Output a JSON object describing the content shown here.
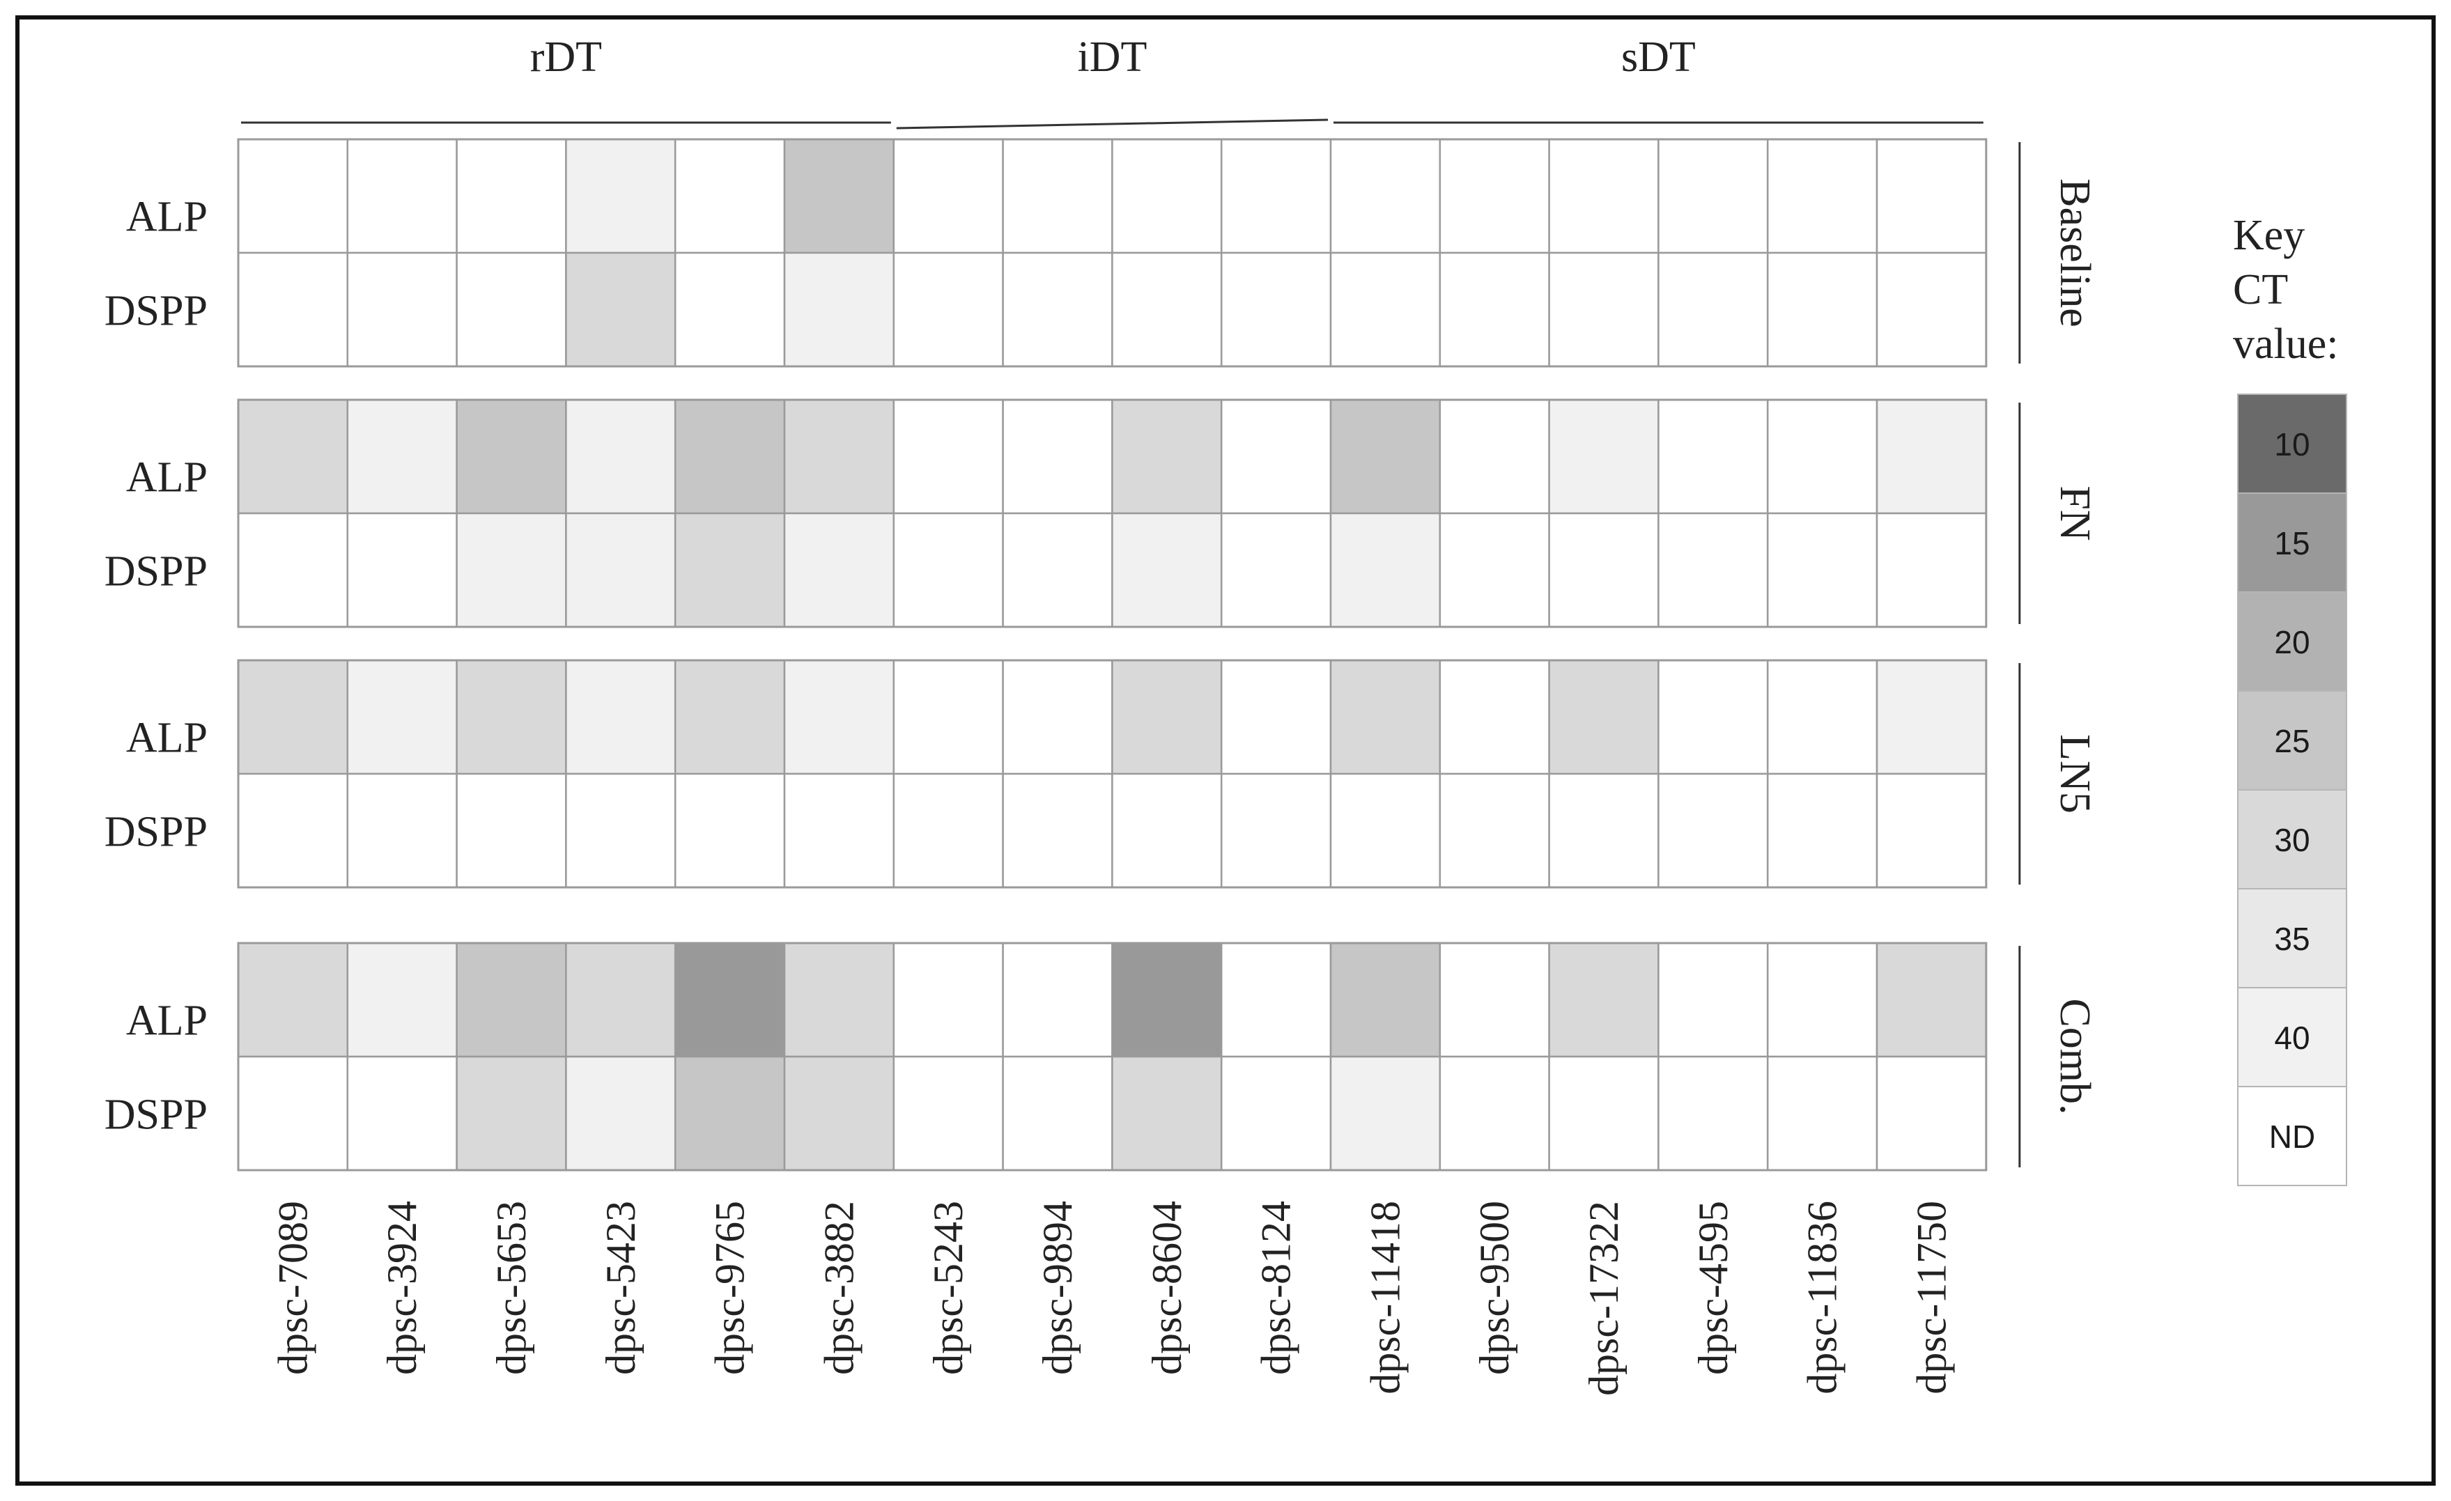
{
  "chart_data": {
    "type": "heatmap",
    "column_groups": [
      {
        "label": "rDT",
        "count": 6
      },
      {
        "label": "iDT",
        "count": 4
      },
      {
        "label": "sDT",
        "count": 6
      }
    ],
    "columns": [
      "dpsc-7089",
      "dpsc-3924",
      "dpsc-5653",
      "dpsc-5423",
      "dpsc-9765",
      "dpsc-3882",
      "dpsc-5243",
      "dpsc-9894",
      "dpsc-8604",
      "dpsc-8124",
      "dpsc-11418",
      "dpsc-9500",
      "dpsc-17322",
      "dpsc-4595",
      "dpsc-11836",
      "dpsc-11750"
    ],
    "row_labels": [
      "ALP",
      "DSPP"
    ],
    "panels": [
      {
        "condition": "Baseline",
        "rows": {
          "ALP": [
            "ND",
            "ND",
            "ND",
            "40",
            "ND",
            "25",
            "ND",
            "ND",
            "ND",
            "ND",
            "ND",
            "ND",
            "ND",
            "ND",
            "ND",
            "ND"
          ],
          "DSPP": [
            "ND",
            "ND",
            "ND",
            "30",
            "ND",
            "40",
            "ND",
            "ND",
            "ND",
            "ND",
            "ND",
            "ND",
            "ND",
            "ND",
            "ND",
            "ND"
          ]
        }
      },
      {
        "condition": "FN",
        "rows": {
          "ALP": [
            "30",
            "40",
            "25",
            "40",
            "25",
            "30",
            "ND",
            "ND",
            "30",
            "ND",
            "25",
            "ND",
            "40",
            "ND",
            "ND",
            "40"
          ],
          "DSPP": [
            "ND",
            "ND",
            "40",
            "40",
            "30",
            "40",
            "ND",
            "ND",
            "40",
            "ND",
            "40",
            "ND",
            "ND",
            "ND",
            "ND",
            "ND"
          ]
        }
      },
      {
        "condition": "LN5",
        "rows": {
          "ALP": [
            "30",
            "40",
            "30",
            "40",
            "30",
            "40",
            "ND",
            "ND",
            "30",
            "ND",
            "30",
            "ND",
            "30",
            "ND",
            "ND",
            "40"
          ],
          "DSPP": [
            "ND",
            "ND",
            "ND",
            "ND",
            "ND",
            "ND",
            "ND",
            "ND",
            "ND",
            "ND",
            "ND",
            "ND",
            "ND",
            "ND",
            "ND",
            "ND"
          ]
        }
      },
      {
        "condition": "Comb.",
        "rows": {
          "ALP": [
            "30",
            "40",
            "25",
            "30",
            "15",
            "30",
            "ND",
            "ND",
            "15",
            "ND",
            "25",
            "ND",
            "30",
            "ND",
            "ND",
            "30"
          ],
          "DSPP": [
            "ND",
            "ND",
            "30",
            "40",
            "25",
            "30",
            "ND",
            "ND",
            "30",
            "ND",
            "40",
            "ND",
            "ND",
            "ND",
            "ND",
            "ND"
          ]
        }
      }
    ],
    "key": {
      "title": "Key CT value:",
      "title_lines": [
        "Key",
        "CT",
        "value:"
      ],
      "levels": [
        {
          "label": "10",
          "color": "#6a6a6a"
        },
        {
          "label": "15",
          "color": "#999999"
        },
        {
          "label": "20",
          "color": "#b2b2b2"
        },
        {
          "label": "25",
          "color": "#c6c6c6"
        },
        {
          "label": "30",
          "color": "#d9d9d9"
        },
        {
          "label": "35",
          "color": "#e8e8e8"
        },
        {
          "label": "40",
          "color": "#f1f1f1"
        },
        {
          "label": "ND",
          "color": "#ffffff"
        }
      ]
    }
  }
}
